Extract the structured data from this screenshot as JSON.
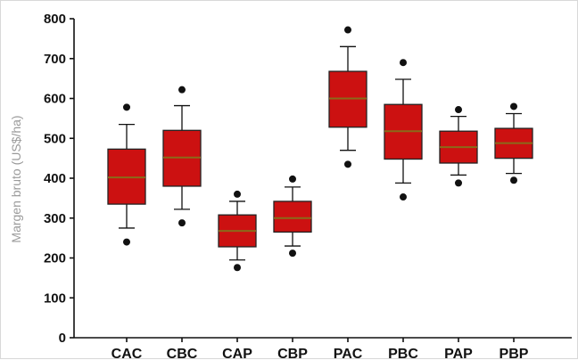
{
  "chart_data": {
    "type": "box",
    "title": "",
    "xlabel": "",
    "ylabel": "Margen bruto (US$/ha)",
    "ylim": [
      0,
      800
    ],
    "yticks": [
      "0",
      "100",
      "200",
      "300",
      "400",
      "500",
      "600",
      "700",
      "800"
    ],
    "grid": false,
    "box_color": "#cc1111",
    "median_color": "#8a6a1a",
    "categories": [
      "CAC",
      "CBC",
      "CAP",
      "CBP",
      "PAC",
      "PBC",
      "PAP",
      "PBP"
    ],
    "boxes": [
      {
        "whisker_low": 275,
        "q1": 335,
        "median": 402,
        "q3": 473,
        "whisker_high": 535,
        "outliers": [
          240,
          578
        ]
      },
      {
        "whisker_low": 322,
        "q1": 380,
        "median": 452,
        "q3": 520,
        "whisker_high": 582,
        "outliers": [
          288,
          622
        ]
      },
      {
        "whisker_low": 195,
        "q1": 228,
        "median": 268,
        "q3": 308,
        "whisker_high": 342,
        "outliers": [
          176,
          360
        ]
      },
      {
        "whisker_low": 230,
        "q1": 265,
        "median": 300,
        "q3": 342,
        "whisker_high": 378,
        "outliers": [
          212,
          398
        ]
      },
      {
        "whisker_low": 470,
        "q1": 528,
        "median": 600,
        "q3": 668,
        "whisker_high": 730,
        "outliers": [
          435,
          772
        ]
      },
      {
        "whisker_low": 388,
        "q1": 448,
        "median": 518,
        "q3": 585,
        "whisker_high": 648,
        "outliers": [
          353,
          690
        ]
      },
      {
        "whisker_low": 408,
        "q1": 438,
        "median": 478,
        "q3": 518,
        "whisker_high": 555,
        "outliers": [
          388,
          572
        ]
      },
      {
        "whisker_low": 412,
        "q1": 450,
        "median": 488,
        "q3": 525,
        "whisker_high": 562,
        "outliers": [
          395,
          580
        ]
      }
    ]
  }
}
